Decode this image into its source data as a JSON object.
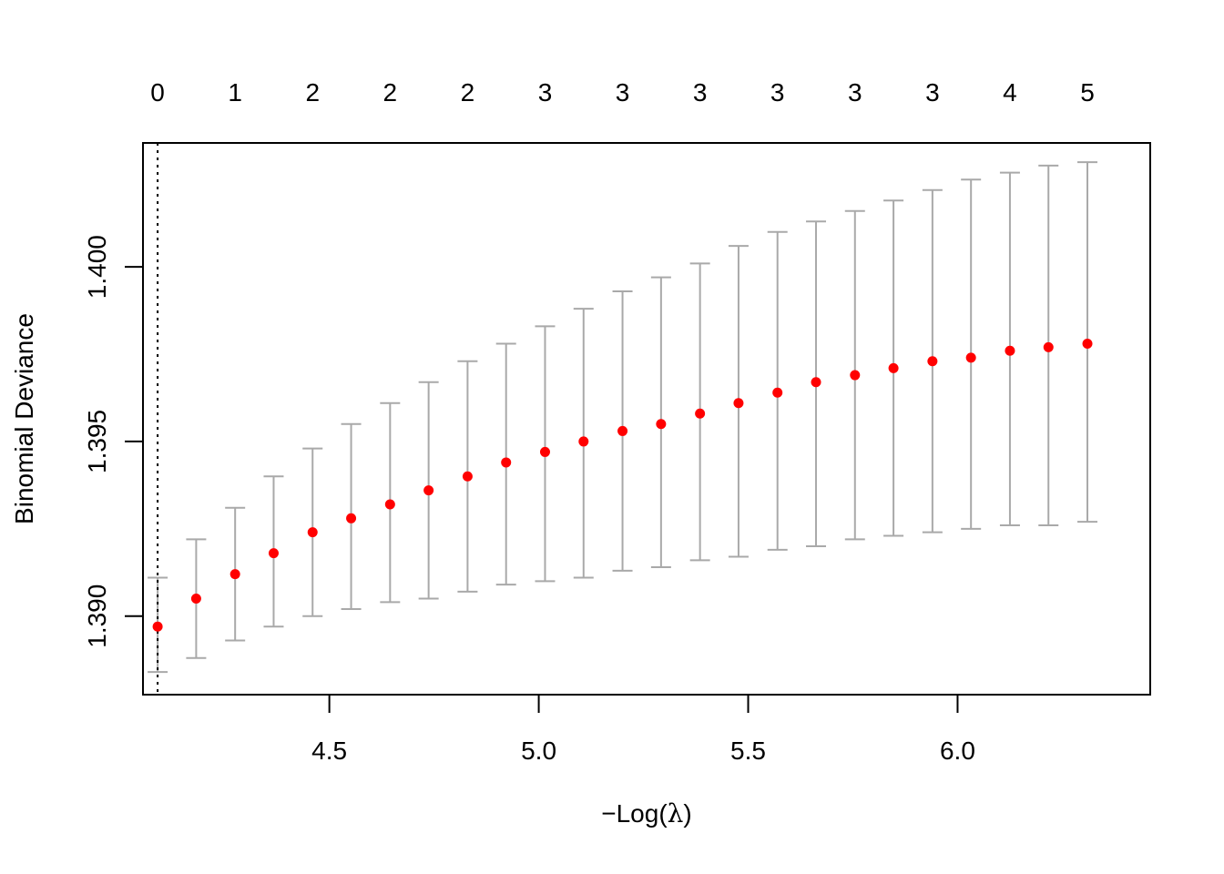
{
  "chart_data": {
    "type": "scatter",
    "title": "",
    "xlabel": "−Log(λ)",
    "xlabel_parts": {
      "prefix": "−Log(",
      "symbol": "λ",
      "suffix": ")"
    },
    "ylabel": "Binomial Deviance",
    "xlim": [
      4.055,
      6.46
    ],
    "ylim": [
      1.38775,
      1.40355
    ],
    "x_ticks": [
      4.5,
      5.0,
      5.5,
      6.0
    ],
    "x_tick_labels": [
      "4.5",
      "5.0",
      "5.5",
      "6.0"
    ],
    "y_ticks": [
      1.39,
      1.395,
      1.4
    ],
    "y_tick_labels": [
      "1.390",
      "1.395",
      "1.400"
    ],
    "top_axis": {
      "x": [
        4.09,
        4.275,
        4.46,
        4.645,
        4.83,
        5.015,
        5.2,
        5.385,
        5.57,
        5.755,
        5.94,
        6.125,
        6.31
      ],
      "labels": [
        "0",
        "1",
        "2",
        "2",
        "2",
        "3",
        "3",
        "3",
        "3",
        "3",
        "3",
        "4",
        "5"
      ]
    },
    "reference_line_x": 4.09,
    "grid": false,
    "point_color": "#ff0000",
    "errorbar_color": "#a9a9a9",
    "series": [
      {
        "x": [
          4.09,
          4.182,
          4.275,
          4.367,
          4.46,
          4.552,
          4.645,
          4.737,
          4.83,
          4.922,
          5.015,
          5.107,
          5.2,
          5.292,
          5.385,
          5.477,
          5.57,
          5.662,
          5.755,
          5.847,
          5.94,
          6.032,
          6.125,
          6.217,
          6.31
        ],
        "y": [
          1.3897,
          1.3905,
          1.3912,
          1.3918,
          1.3924,
          1.3928,
          1.3932,
          1.3936,
          1.394,
          1.3944,
          1.3947,
          1.395,
          1.3953,
          1.3955,
          1.3958,
          1.3961,
          1.3964,
          1.3967,
          1.3969,
          1.3971,
          1.3973,
          1.3974,
          1.3976,
          1.3977,
          1.3978
        ],
        "lower": [
          1.3884,
          1.3888,
          1.3893,
          1.3897,
          1.39,
          1.3902,
          1.3904,
          1.3905,
          1.3907,
          1.3909,
          1.391,
          1.3911,
          1.3913,
          1.3914,
          1.3916,
          1.3917,
          1.3919,
          1.392,
          1.3922,
          1.3923,
          1.3924,
          1.3925,
          1.3926,
          1.3926,
          1.3927
        ],
        "upper": [
          1.3911,
          1.3922,
          1.3931,
          1.394,
          1.3948,
          1.3955,
          1.3961,
          1.3967,
          1.3973,
          1.3978,
          1.3983,
          1.3988,
          1.3993,
          1.3997,
          1.4001,
          1.4006,
          1.401,
          1.4013,
          1.4016,
          1.4019,
          1.4022,
          1.4025,
          1.4027,
          1.4029,
          1.403
        ]
      }
    ]
  }
}
